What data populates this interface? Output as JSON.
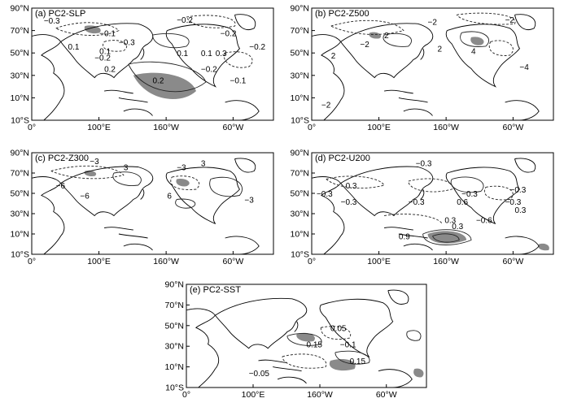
{
  "figure": {
    "panels": [
      {
        "id": "a",
        "title": "(a) PC2-SLP",
        "y_ticks": [
          "90°N",
          "70°N",
          "50°N",
          "30°N",
          "10°N",
          "10°S"
        ],
        "x_ticks": [
          "0°",
          "100°E",
          "160°W",
          "60°W"
        ],
        "contour_labels": [
          "-0.3",
          "-0.2",
          "-0.1",
          "-0.2",
          "-0.3",
          "0.1",
          "0.1",
          "-0.2",
          "0.1",
          "0.1",
          "0.2",
          "-0.2",
          "-0.1",
          "-0.2",
          "0.2",
          "0.3"
        ]
      },
      {
        "id": "b",
        "title": "(b) PC2-Z500",
        "y_ticks": [
          "90°N",
          "70°N",
          "50°N",
          "30°N",
          "10°N",
          "10°S"
        ],
        "x_ticks": [
          "0°",
          "100°E",
          "160°W",
          "60°W"
        ],
        "contour_labels": [
          "-2",
          "-2",
          "-2",
          "2",
          "2",
          "2",
          "4",
          "-4",
          "-2"
        ]
      },
      {
        "id": "c",
        "title": "(c) PC2-Z300",
        "y_ticks": [
          "90°N",
          "70°N",
          "50°N",
          "30°N",
          "10°N",
          "10°S"
        ],
        "x_ticks": [
          "0°",
          "100°E",
          "160°W",
          "60°W"
        ],
        "contour_labels": [
          "-3",
          "3",
          "-3",
          "3",
          "-6",
          "-6",
          "6",
          "-3"
        ]
      },
      {
        "id": "d",
        "title": "(d) PC2-U200",
        "y_ticks": [
          "90°N",
          "70°N",
          "50°N",
          "30°N",
          "10°N",
          "10°S"
        ],
        "x_ticks": [
          "0°",
          "100°E",
          "160°W",
          "60°W"
        ],
        "contour_labels": [
          "-0.3",
          "-0.3",
          "0.3",
          "-0.3",
          "-0.3",
          "-0.3",
          "0.6",
          "-0.3",
          "-0.3",
          "0.3",
          "-0.6",
          "0.3",
          "0.3",
          "0.9"
        ]
      },
      {
        "id": "e",
        "title": "(e) PC2-SST",
        "y_ticks": [
          "90°N",
          "70°N",
          "50°N",
          "30°N",
          "10°N",
          "10°S"
        ],
        "x_ticks": [
          "0°",
          "100°E",
          "160°W",
          "60°W"
        ],
        "contour_labels": [
          "0.05",
          "0.15",
          "-0.1",
          "0.15",
          "-0.05"
        ]
      }
    ],
    "colors": {
      "frame": "#000000",
      "coast": "#000000",
      "shade": "#8a8a8a",
      "contour": "#222222"
    }
  }
}
